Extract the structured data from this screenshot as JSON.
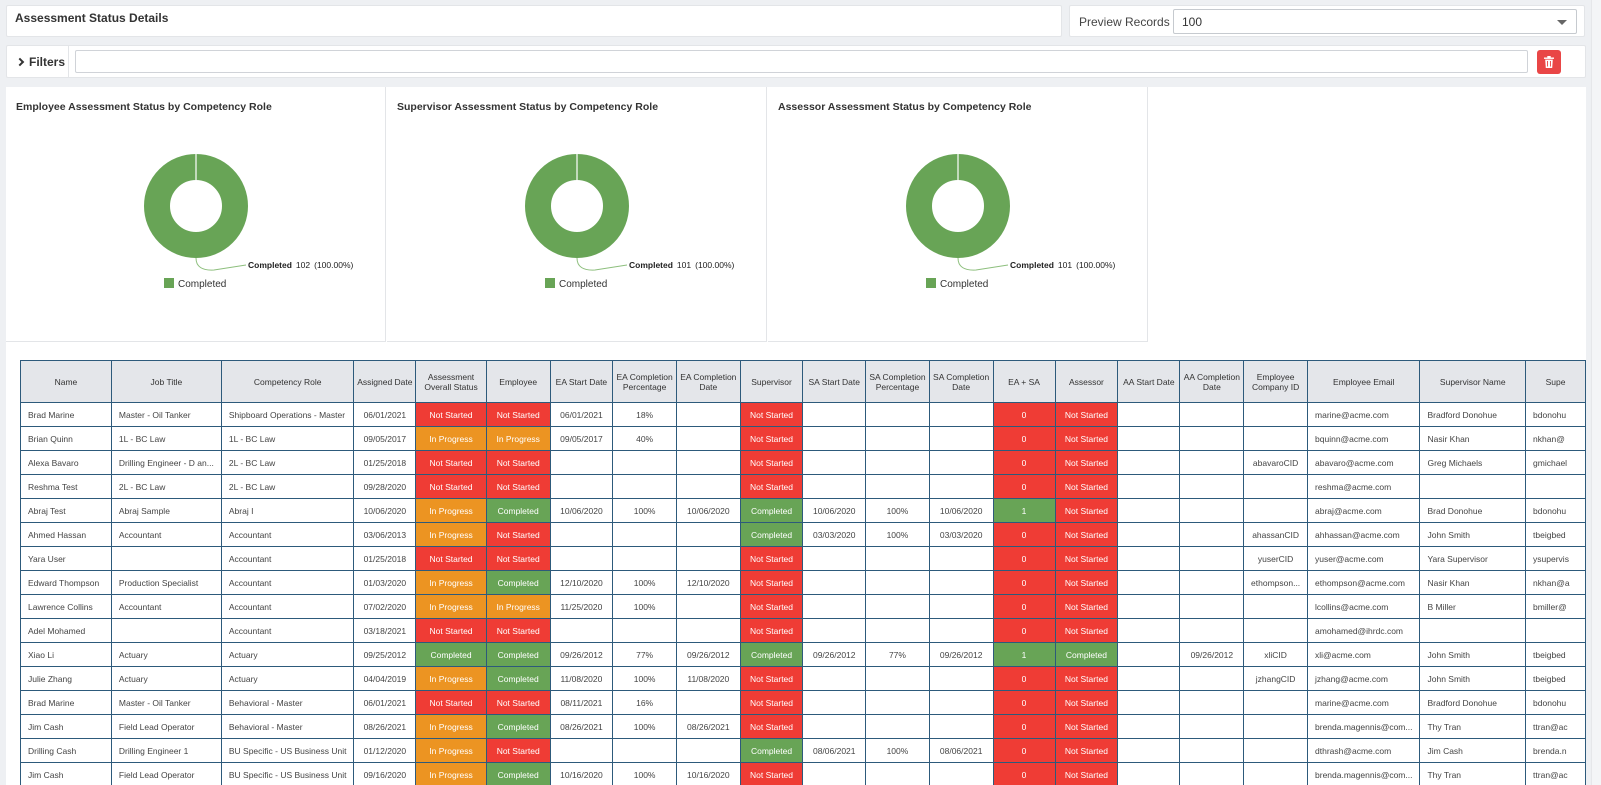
{
  "header": {
    "title": "Assessment Status Details"
  },
  "preview": {
    "label": "Preview Records",
    "value": "100"
  },
  "filters": {
    "label": "Filters",
    "value": ""
  },
  "colors": {
    "not_started": "#ef3c35",
    "in_progress": "#ec9422",
    "completed": "#68a456",
    "delete": "#e94646"
  },
  "charts": [
    {
      "title": "Employee Assessment Status by Competency Role",
      "slice_label": "Completed",
      "slice_count": "102",
      "slice_pct": "(100.00%)",
      "legend": "Completed"
    },
    {
      "title": "Supervisor Assessment Status by Competency Role",
      "slice_label": "Completed",
      "slice_count": "101",
      "slice_pct": "(100.00%)",
      "legend": "Completed"
    },
    {
      "title": "Assessor Assessment Status by Competency Role",
      "slice_label": "Completed",
      "slice_count": "101",
      "slice_pct": "(100.00%)",
      "legend": "Completed"
    }
  ],
  "chart_data": [
    {
      "type": "pie",
      "title": "Employee Assessment Status by Competency Role",
      "categories": [
        "Completed"
      ],
      "values": [
        102
      ],
      "percentages": [
        "100.00%"
      ],
      "legend": "bottom"
    },
    {
      "type": "pie",
      "title": "Supervisor Assessment Status by Competency Role",
      "categories": [
        "Completed"
      ],
      "values": [
        101
      ],
      "percentages": [
        "100.00%"
      ],
      "legend": "bottom"
    },
    {
      "type": "pie",
      "title": "Assessor Assessment Status by Competency Role",
      "categories": [
        "Completed"
      ],
      "values": [
        101
      ],
      "percentages": [
        "100.00%"
      ],
      "legend": "bottom"
    }
  ],
  "table": {
    "columns": [
      "Name",
      "Job Title",
      "Competency Role",
      "Assigned Date",
      "Assessment Overall Status",
      "Employee",
      "EA Start Date",
      "EA Completion Percentage",
      "EA Completion Date",
      "Supervisor",
      "SA Start Date",
      "SA Completion Percentage",
      "SA Completion Date",
      "EA + SA",
      "Assessor",
      "AA Start Date",
      "AA Completion Date",
      "Employee Company ID",
      "Employee Email",
      "Supervisor Name",
      "Supe"
    ],
    "rows": [
      [
        "Brad Marine",
        "Master - Oil Tanker",
        "Shipboard Operations - Master",
        "06/01/2021",
        "Not Started",
        "Not Started",
        "06/01/2021",
        "18%",
        "",
        "Not Started",
        "",
        "",
        "",
        "0",
        "Not Started",
        "",
        "",
        "",
        "marine@acme.com",
        "Bradford Donohue",
        "bdonohu"
      ],
      [
        "Brian Quinn",
        "1L - BC Law",
        "1L - BC Law",
        "09/05/2017",
        "In Progress",
        "In Progress",
        "09/05/2017",
        "40%",
        "",
        "Not Started",
        "",
        "",
        "",
        "0",
        "Not Started",
        "",
        "",
        "",
        "bquinn@acme.com",
        "Nasir Khan",
        "nkhan@"
      ],
      [
        "Alexa Bavaro",
        "Drilling Engineer - D an...",
        "2L - BC Law",
        "01/25/2018",
        "Not Started",
        "Not Started",
        "",
        "",
        "",
        "Not Started",
        "",
        "",
        "",
        "0",
        "Not Started",
        "",
        "",
        "abavaroCID",
        "abavaro@acme.com",
        "Greg Michaels",
        "gmichael"
      ],
      [
        "Reshma Test",
        "2L - BC Law",
        "2L - BC Law",
        "09/28/2020",
        "Not Started",
        "Not Started",
        "",
        "",
        "",
        "Not Started",
        "",
        "",
        "",
        "0",
        "Not Started",
        "",
        "",
        "",
        "reshma@acme.com",
        "",
        ""
      ],
      [
        "Abraj Test",
        "Abraj Sample",
        "Abraj I",
        "10/06/2020",
        "In Progress",
        "Completed",
        "10/06/2020",
        "100%",
        "10/06/2020",
        "Completed",
        "10/06/2020",
        "100%",
        "10/06/2020",
        "1",
        "Not Started",
        "",
        "",
        "",
        "abraj@acme.com",
        "Brad Donohue",
        "bdonohu"
      ],
      [
        "Ahmed Hassan",
        "Accountant",
        "Accountant",
        "03/06/2013",
        "In Progress",
        "Not Started",
        "",
        "",
        "",
        "Completed",
        "03/03/2020",
        "100%",
        "03/03/2020",
        "0",
        "Not Started",
        "",
        "",
        "ahassanCID",
        "ahhassan@acme.com",
        "John Smith",
        "tbeigbed"
      ],
      [
        "Yara User",
        "",
        "Accountant",
        "01/25/2018",
        "Not Started",
        "Not Started",
        "",
        "",
        "",
        "Not Started",
        "",
        "",
        "",
        "0",
        "Not Started",
        "",
        "",
        "yuserCID",
        "yuser@acme.com",
        "Yara Supervisor",
        "ysupervis"
      ],
      [
        "Edward Thompson",
        "Production Specialist",
        "Accountant",
        "01/03/2020",
        "In Progress",
        "Completed",
        "12/10/2020",
        "100%",
        "12/10/2020",
        "Not Started",
        "",
        "",
        "",
        "0",
        "Not Started",
        "",
        "",
        "ethompson...",
        "ethompson@acme.com",
        "Nasir Khan",
        "nkhan@a"
      ],
      [
        "Lawrence Collins",
        "Accountant",
        "Accountant",
        "07/02/2020",
        "In Progress",
        "In Progress",
        "11/25/2020",
        "100%",
        "",
        "Not Started",
        "",
        "",
        "",
        "0",
        "Not Started",
        "",
        "",
        "",
        "lcollins@acme.com",
        "B Miller",
        "bmiller@"
      ],
      [
        "Adel Mohamed",
        "",
        "Accountant",
        "03/18/2021",
        "Not Started",
        "Not Started",
        "",
        "",
        "",
        "Not Started",
        "",
        "",
        "",
        "0",
        "Not Started",
        "",
        "",
        "",
        "amohamed@ihrdc.com",
        "",
        ""
      ],
      [
        "Xiao Li",
        "Actuary",
        "Actuary",
        "09/25/2012",
        "Completed",
        "Completed",
        "09/26/2012",
        "77%",
        "09/26/2012",
        "Completed",
        "09/26/2012",
        "77%",
        "09/26/2012",
        "1",
        "Completed",
        "",
        "09/26/2012",
        "xliCID",
        "xli@acme.com",
        "John Smith",
        "tbeigbed"
      ],
      [
        "Julie Zhang",
        "Actuary",
        "Actuary",
        "04/04/2019",
        "In Progress",
        "Completed",
        "11/08/2020",
        "100%",
        "11/08/2020",
        "Not Started",
        "",
        "",
        "",
        "0",
        "Not Started",
        "",
        "",
        "jzhangCID",
        "jzhang@acme.com",
        "John Smith",
        "tbeigbed"
      ],
      [
        "Brad Marine",
        "Master - Oil Tanker",
        "Behavioral - Master",
        "06/01/2021",
        "Not Started",
        "Not Started",
        "08/11/2021",
        "16%",
        "",
        "Not Started",
        "",
        "",
        "",
        "0",
        "Not Started",
        "",
        "",
        "",
        "marine@acme.com",
        "Bradford Donohue",
        "bdonohu"
      ],
      [
        "Jim Cash",
        "Field Lead Operator",
        "Behavioral - Master",
        "08/26/2021",
        "In Progress",
        "Completed",
        "08/26/2021",
        "100%",
        "08/26/2021",
        "Not Started",
        "",
        "",
        "",
        "0",
        "Not Started",
        "",
        "",
        "",
        "brenda.magennis@com...",
        "Thy Tran",
        "ttran@ac"
      ],
      [
        "Drilling Cash",
        "Drilling Engineer 1",
        "BU Specific - US Business Unit",
        "01/12/2020",
        "In Progress",
        "Not Started",
        "",
        "",
        "",
        "Completed",
        "08/06/2021",
        "100%",
        "08/06/2021",
        "0",
        "Not Started",
        "",
        "",
        "",
        "dthrash@acme.com",
        "Jim Cash",
        "brenda.n"
      ],
      [
        "Jim Cash",
        "Field Lead Operator",
        "BU Specific - US Business Unit",
        "09/16/2020",
        "In Progress",
        "Completed",
        "10/16/2020",
        "100%",
        "10/16/2020",
        "Not Started",
        "",
        "",
        "",
        "0",
        "Not Started",
        "",
        "",
        "",
        "brenda.magennis@com...",
        "Thy Tran",
        "ttran@ac"
      ]
    ]
  }
}
